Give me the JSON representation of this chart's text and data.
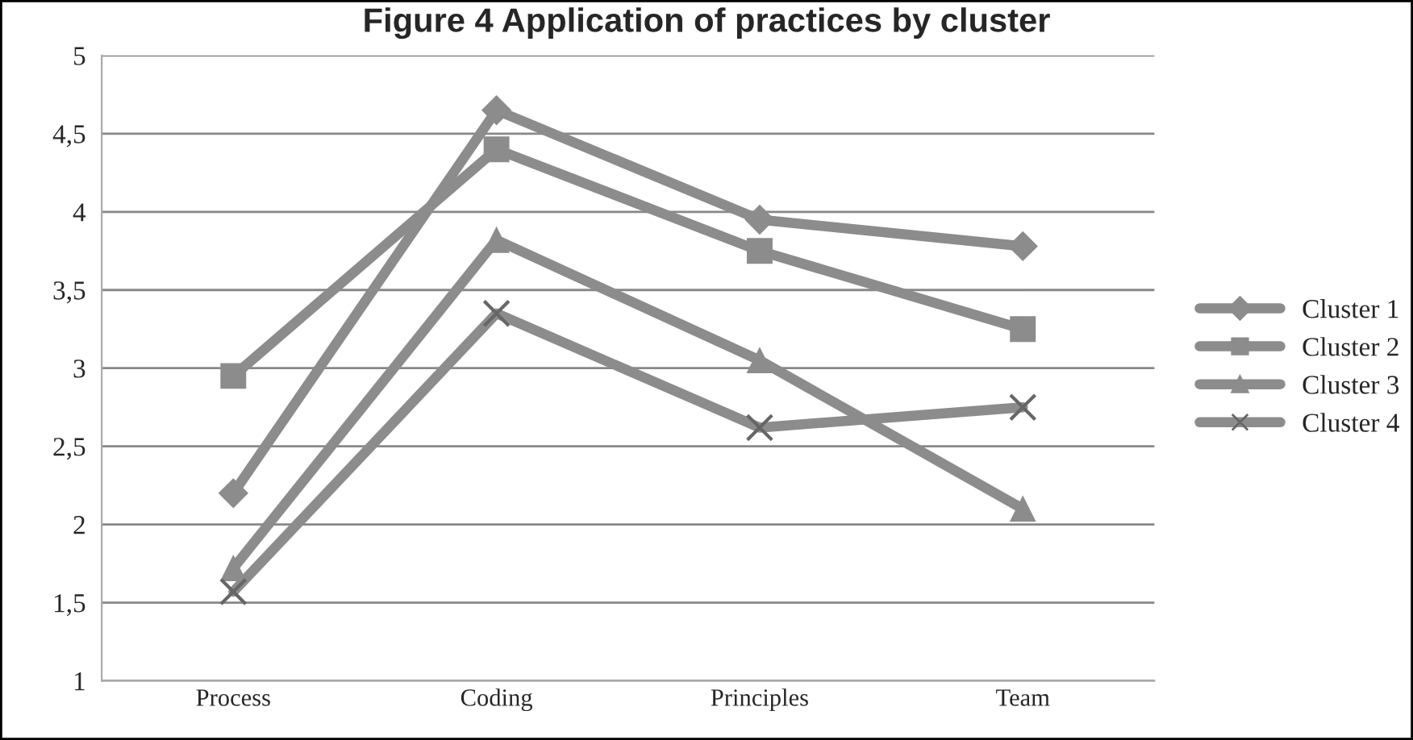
{
  "chart_data": {
    "type": "line",
    "title": "Figure 4 Application of practices by cluster",
    "categories": [
      "Process",
      "Coding",
      "Principles",
      "Team"
    ],
    "series": [
      {
        "name": "Cluster 1",
        "color": "#8c8c8c",
        "marker": "diamond",
        "values": [
          2.2,
          4.65,
          3.95,
          3.78
        ]
      },
      {
        "name": "Cluster 2",
        "color": "#8c8c8c",
        "marker": "square",
        "values": [
          2.95,
          4.4,
          3.75,
          3.25
        ]
      },
      {
        "name": "Cluster 3",
        "color": "#8c8c8c",
        "marker": "triangle",
        "values": [
          1.72,
          3.82,
          3.05,
          2.1
        ]
      },
      {
        "name": "Cluster 4",
        "color": "#8c8c8c",
        "marker": "cross",
        "values": [
          1.57,
          3.35,
          2.62,
          2.75
        ]
      }
    ],
    "ylim": [
      1,
      5
    ],
    "yticks": [
      {
        "value": 1,
        "label": "1"
      },
      {
        "value": 1.5,
        "label": "1,5"
      },
      {
        "value": 2,
        "label": "2"
      },
      {
        "value": 2.5,
        "label": "2,5"
      },
      {
        "value": 3,
        "label": "3"
      },
      {
        "value": 3.5,
        "label": "3,5"
      },
      {
        "value": 4,
        "label": "4"
      },
      {
        "value": 4.5,
        "label": "4,5"
      },
      {
        "value": 5,
        "label": "5"
      }
    ],
    "grid": "y",
    "legend": "right"
  }
}
